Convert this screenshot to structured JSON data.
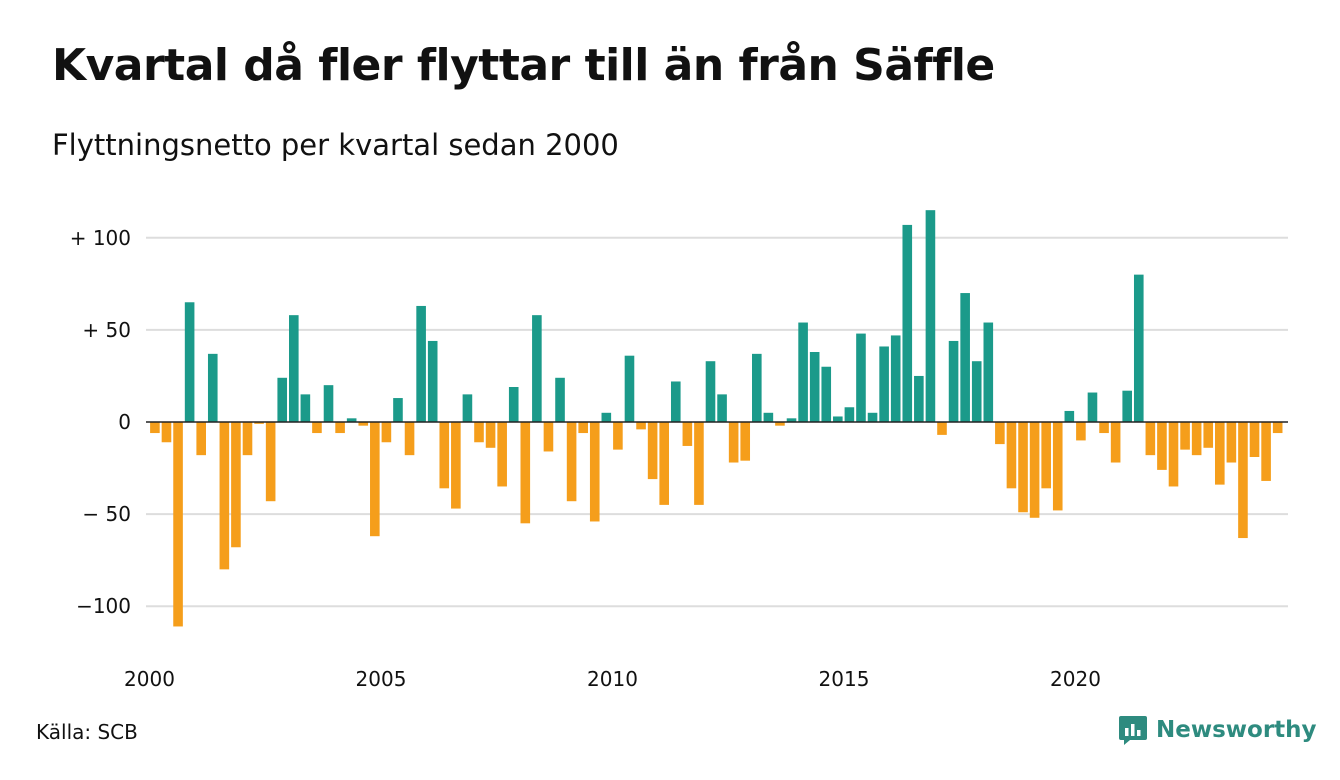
{
  "title": "Kvartal då fler flyttar till än från Säffle",
  "subtitle": "Flyttningsnetto per kvartal sedan 2000",
  "source": "Källa: SCB",
  "brand": {
    "name": "Newsworthy",
    "icon": "newsworthy-logo-icon"
  },
  "colors": {
    "positive": "#1b9a8a",
    "negative": "#f59e1b",
    "grid": "#dddddd",
    "zero": "#222222",
    "brand": "#2e8b7f"
  },
  "chart_data": {
    "type": "bar",
    "title": "",
    "xlabel": "",
    "ylabel": "",
    "ylim": [
      -118,
      118
    ],
    "grid": true,
    "y_ticks": [
      {
        "value": 100,
        "label": "+ 100"
      },
      {
        "value": 50,
        "label": "+  50"
      },
      {
        "value": 0,
        "label": "0"
      },
      {
        "value": -50,
        "label": "− 50"
      },
      {
        "value": -100,
        "label": "−100"
      }
    ],
    "x_ticks": [
      {
        "value": 2000,
        "label": "2000"
      },
      {
        "value": 2005,
        "label": "2005"
      },
      {
        "value": 2010,
        "label": "2010"
      },
      {
        "value": 2015,
        "label": "2015"
      },
      {
        "value": 2020,
        "label": "2020"
      }
    ],
    "x_start": "2000 Q1",
    "x_end": "2024 Q2",
    "series": [
      {
        "values": [
          -6,
          -11,
          -111,
          65,
          -18,
          37,
          -80,
          -68,
          -18,
          -1,
          -43,
          24,
          58,
          15,
          -6,
          20,
          -6,
          2,
          -2,
          -62,
          -11,
          13,
          -18,
          63,
          44,
          -36,
          -47,
          15,
          -11,
          -14,
          -35,
          19,
          -55,
          58,
          -16,
          24,
          -43,
          -6,
          -54,
          5,
          -15,
          36,
          -4,
          -31,
          -45,
          22,
          -13,
          -45,
          33,
          15,
          -22,
          -21,
          37,
          5,
          -2,
          2,
          54,
          38,
          30,
          3,
          8,
          48,
          5,
          41,
          47,
          107,
          25,
          115,
          -7,
          44,
          70,
          33,
          54,
          -12,
          -36,
          -49,
          -52,
          -36,
          -48,
          6,
          -10,
          16,
          -6,
          -22,
          17,
          80,
          -18,
          -26,
          -35,
          -15,
          -18,
          -14,
          -34,
          -22,
          -63,
          -19,
          -32,
          -6
        ]
      }
    ]
  }
}
